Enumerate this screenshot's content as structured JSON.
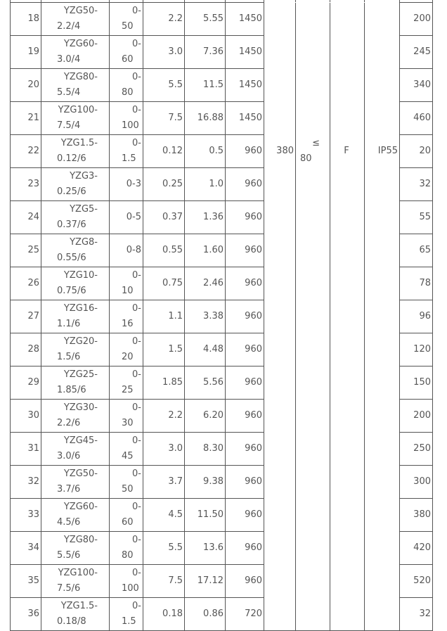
{
  "table": {
    "merged": {
      "voltage": "380",
      "le_symbol": "≤",
      "le_value": "80",
      "insulation": "F",
      "protection": "IP55"
    },
    "merged_row": "22",
    "rows": [
      {
        "no": "18",
        "model": "YZG50-2.2/4",
        "range": "0-50",
        "kw": "2.2",
        "a": "5.55",
        "rpm": "1450",
        "last": "200"
      },
      {
        "no": "19",
        "model": "YZG60-3.0/4",
        "range": "0-60",
        "kw": "3.0",
        "a": "7.36",
        "rpm": "1450",
        "last": "245"
      },
      {
        "no": "20",
        "model": "YZG80-5.5/4",
        "range": "0-80",
        "kw": "5.5",
        "a": "11.5",
        "rpm": "1450",
        "last": "340"
      },
      {
        "no": "21",
        "model": "YZG100-7.5/4",
        "range": "0-100",
        "kw": "7.5",
        "a": "16.88",
        "rpm": "1450",
        "last": "460"
      },
      {
        "no": "22",
        "model": "YZG1.5-0.12/6",
        "range": "0-1.5",
        "kw": "0.12",
        "a": "0.5",
        "rpm": "960",
        "last": "20"
      },
      {
        "no": "23",
        "model": "YZG3-0.25/6",
        "range": "0-3",
        "kw": "0.25",
        "a": "1.0",
        "rpm": "960",
        "last": "32"
      },
      {
        "no": "24",
        "model": "YZG5-0.37/6",
        "range": "0-5",
        "kw": "0.37",
        "a": "1.36",
        "rpm": "960",
        "last": "55"
      },
      {
        "no": "25",
        "model": "YZG8-0.55/6",
        "range": "0-8",
        "kw": "0.55",
        "a": "1.60",
        "rpm": "960",
        "last": "65"
      },
      {
        "no": "26",
        "model": "YZG10-0.75/6",
        "range": "0-10",
        "kw": "0.75",
        "a": "2.46",
        "rpm": "960",
        "last": "78"
      },
      {
        "no": "27",
        "model": "YZG16-1.1/6",
        "range": "0-16",
        "kw": "1.1",
        "a": "3.38",
        "rpm": "960",
        "last": "96"
      },
      {
        "no": "28",
        "model": "YZG20-1.5/6",
        "range": "0-20",
        "kw": "1.5",
        "a": "4.48",
        "rpm": "960",
        "last": "120"
      },
      {
        "no": "29",
        "model": "YZG25-1.85/6",
        "range": "0-25",
        "kw": "1.85",
        "a": "5.56",
        "rpm": "960",
        "last": "150"
      },
      {
        "no": "30",
        "model": "YZG30-2.2/6",
        "range": "0-30",
        "kw": "2.2",
        "a": "6.20",
        "rpm": "960",
        "last": "200"
      },
      {
        "no": "31",
        "model": "YZG45-3.0/6",
        "range": "0-45",
        "kw": "3.0",
        "a": "8.30",
        "rpm": "960",
        "last": "250"
      },
      {
        "no": "32",
        "model": "YZG50-3.7/6",
        "range": "0-50",
        "kw": "3.7",
        "a": "9.38",
        "rpm": "960",
        "last": "300"
      },
      {
        "no": "33",
        "model": "YZG60-4.5/6",
        "range": "0-60",
        "kw": "4.5",
        "a": "11.50",
        "rpm": "960",
        "last": "380"
      },
      {
        "no": "34",
        "model": "YZG80-5.5/6",
        "range": "0-80",
        "kw": "5.5",
        "a": "13.6",
        "rpm": "960",
        "last": "420"
      },
      {
        "no": "35",
        "model": "YZG100-7.5/6",
        "range": "0-100",
        "kw": "7.5",
        "a": "17.12",
        "rpm": "960",
        "last": "520"
      },
      {
        "no": "36",
        "model": "YZG1.5-0.18/8",
        "range": "0-1.5",
        "kw": "0.18",
        "a": "0.86",
        "rpm": "720",
        "last": "32"
      }
    ]
  }
}
